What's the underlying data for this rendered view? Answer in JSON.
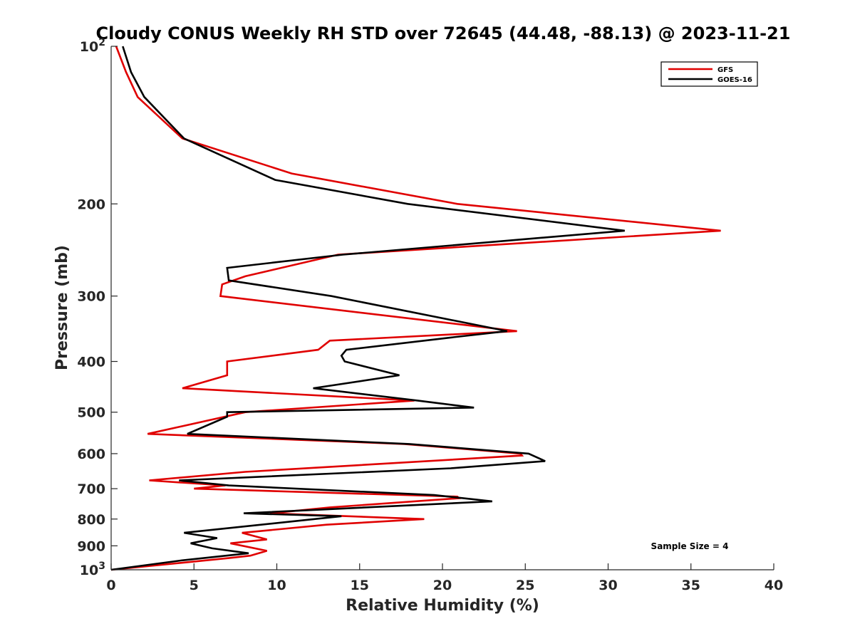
{
  "chart_data": {
    "type": "line",
    "title": "Cloudy CONUS Weekly RH STD over 72645 (44.48, -88.13) @ 2023-11-21",
    "xlabel": "Relative Humidity (%)",
    "ylabel": "Pressure (mb)",
    "xlim": [
      0,
      40
    ],
    "ylim": [
      100,
      1000
    ],
    "y_scale": "log",
    "y_reversed": true,
    "grid": false,
    "legend_position": "top-right",
    "x_ticks": [
      0,
      5,
      10,
      15,
      20,
      25,
      30,
      35,
      40
    ],
    "x_tick_labels": [
      "0",
      "5",
      "10",
      "15",
      "20",
      "25",
      "30",
      "35",
      "40"
    ],
    "y_ticks": [
      100,
      200,
      300,
      400,
      500,
      600,
      700,
      800,
      900,
      1000
    ],
    "y_tick_labels": [
      {
        "base": "10",
        "exp": "2"
      },
      {
        "base": "200",
        "exp": ""
      },
      {
        "base": "300",
        "exp": ""
      },
      {
        "base": "400",
        "exp": ""
      },
      {
        "base": "500",
        "exp": ""
      },
      {
        "base": "600",
        "exp": ""
      },
      {
        "base": "700",
        "exp": ""
      },
      {
        "base": "800",
        "exp": ""
      },
      {
        "base": "900",
        "exp": ""
      },
      {
        "base": "10",
        "exp": "3"
      }
    ],
    "annotation": "Sample Size = 4",
    "series": [
      {
        "name": "GFS",
        "color": "#e00000",
        "points": [
          [
            0.3,
            100
          ],
          [
            0.9,
            112
          ],
          [
            1.6,
            125
          ],
          [
            4.3,
            150
          ],
          [
            10.9,
            175
          ],
          [
            20.9,
            200
          ],
          [
            36.8,
            225
          ],
          [
            13.7,
            250
          ],
          [
            8.1,
            275
          ],
          [
            6.7,
            285
          ],
          [
            6.6,
            300
          ],
          [
            24.5,
            350
          ],
          [
            13.2,
            365
          ],
          [
            12.5,
            380
          ],
          [
            7.0,
            400
          ],
          [
            7.0,
            425
          ],
          [
            4.3,
            450
          ],
          [
            18.3,
            475
          ],
          [
            8.1,
            500
          ],
          [
            2.2,
            550
          ],
          [
            17.7,
            575
          ],
          [
            24.7,
            600
          ],
          [
            24.8,
            605
          ],
          [
            8.1,
            650
          ],
          [
            2.3,
            675
          ],
          [
            6.9,
            690
          ],
          [
            5.0,
            700
          ],
          [
            20.9,
            725
          ],
          [
            21.0,
            730
          ],
          [
            13.2,
            760
          ],
          [
            9.6,
            780
          ],
          [
            18.9,
            800
          ],
          [
            13.0,
            820
          ],
          [
            7.9,
            850
          ],
          [
            9.4,
            875
          ],
          [
            7.2,
            890
          ],
          [
            9.4,
            920
          ],
          [
            8.4,
            940
          ],
          [
            7.1,
            950
          ],
          [
            0.0,
            1000
          ]
        ]
      },
      {
        "name": "GOES-16",
        "color": "#000000",
        "points": [
          [
            0.7,
            100
          ],
          [
            1.2,
            112
          ],
          [
            2.0,
            125
          ],
          [
            4.4,
            150
          ],
          [
            9.9,
            180
          ],
          [
            17.9,
            200
          ],
          [
            31.0,
            225
          ],
          [
            14.0,
            250
          ],
          [
            7.0,
            265
          ],
          [
            7.1,
            280
          ],
          [
            13.3,
            300
          ],
          [
            23.9,
            350
          ],
          [
            20.5,
            360
          ],
          [
            14.2,
            380
          ],
          [
            13.9,
            390
          ],
          [
            14.1,
            400
          ],
          [
            17.4,
            425
          ],
          [
            12.2,
            450
          ],
          [
            18.5,
            475
          ],
          [
            21.9,
            490
          ],
          [
            7.0,
            500
          ],
          [
            7.0,
            510
          ],
          [
            4.6,
            550
          ],
          [
            18.0,
            575
          ],
          [
            25.2,
            600
          ],
          [
            26.2,
            620
          ],
          [
            20.5,
            640
          ],
          [
            4.1,
            675
          ],
          [
            7.1,
            690
          ],
          [
            19.5,
            720
          ],
          [
            23.0,
            740
          ],
          [
            8.0,
            780
          ],
          [
            13.9,
            790
          ],
          [
            4.4,
            850
          ],
          [
            6.4,
            870
          ],
          [
            4.8,
            890
          ],
          [
            6.1,
            910
          ],
          [
            8.3,
            930
          ],
          [
            4.2,
            960
          ],
          [
            0.0,
            1000
          ]
        ]
      }
    ]
  }
}
